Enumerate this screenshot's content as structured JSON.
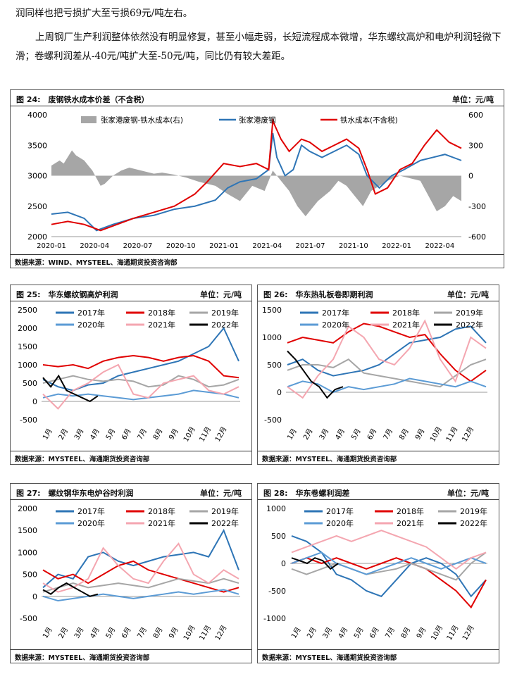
{
  "text": {
    "line1": "润同样也把亏损扩大至亏损69元/吨左右。",
    "para2": "上周钢厂生产利润整体依然没有明显修复，甚至小幅走弱，长短流程成本微增，华东螺纹高炉和电炉利润轻微下滑；卷螺利润差从-40元/吨扩大至-50元/吨，同比仍有较大差距。"
  },
  "chart_data": [
    {
      "id": "fig24",
      "type": "line",
      "title": "图 24:　废钢铁水成本价差（不含税）",
      "unit": "单位：元/吨",
      "source": "数据来源：WIND、MYSTEEL、海通期货投资咨询部",
      "x_ticks": [
        "2020-01",
        "2020-04",
        "2020-07",
        "2020-10",
        "2021-01",
        "2021-04",
        "2021-07",
        "2021-10",
        "2022-01",
        "2022-04"
      ],
      "y_left": {
        "range": [
          2000,
          4000
        ],
        "ticks": [
          2000,
          2500,
          3000,
          3500,
          4000
        ]
      },
      "y_right": {
        "range": [
          -600,
          600
        ],
        "ticks": [
          -600,
          -300,
          0,
          300,
          600
        ]
      },
      "series": [
        {
          "name": "张家港废钢-铁水成本(右)",
          "kind": "area",
          "axis": "right",
          "color": "#a6a6a6",
          "points": [
            [
              0,
              100
            ],
            [
              0.02,
              150
            ],
            [
              0.03,
              120
            ],
            [
              0.05,
              250
            ],
            [
              0.06,
              200
            ],
            [
              0.08,
              150
            ],
            [
              0.1,
              50
            ],
            [
              0.12,
              -100
            ],
            [
              0.13,
              -80
            ],
            [
              0.15,
              0
            ],
            [
              0.17,
              50
            ],
            [
              0.19,
              80
            ],
            [
              0.21,
              60
            ],
            [
              0.23,
              40
            ],
            [
              0.25,
              20
            ],
            [
              0.27,
              30
            ],
            [
              0.3,
              10
            ],
            [
              0.33,
              -20
            ],
            [
              0.36,
              -60
            ],
            [
              0.4,
              -100
            ],
            [
              0.43,
              -180
            ],
            [
              0.46,
              -250
            ],
            [
              0.49,
              -100
            ],
            [
              0.52,
              -150
            ],
            [
              0.54,
              50
            ],
            [
              0.56,
              -50
            ],
            [
              0.58,
              -150
            ],
            [
              0.6,
              -300
            ],
            [
              0.62,
              -400
            ],
            [
              0.65,
              -250
            ],
            [
              0.68,
              -150
            ],
            [
              0.7,
              -50
            ],
            [
              0.72,
              -100
            ],
            [
              0.74,
              -200
            ],
            [
              0.76,
              -300
            ],
            [
              0.78,
              -150
            ],
            [
              0.8,
              -100
            ],
            [
              0.82,
              -50
            ],
            [
              0.85,
              0
            ],
            [
              0.88,
              -30
            ],
            [
              0.9,
              -50
            ],
            [
              0.92,
              -200
            ],
            [
              0.94,
              -350
            ],
            [
              0.96,
              -300
            ],
            [
              0.98,
              -200
            ],
            [
              1.0,
              -250
            ]
          ]
        },
        {
          "name": "张家港废钢",
          "kind": "line",
          "axis": "left",
          "color": "#2e75b6",
          "points": [
            [
              0,
              2370
            ],
            [
              0.04,
              2400
            ],
            [
              0.08,
              2300
            ],
            [
              0.11,
              2100
            ],
            [
              0.15,
              2200
            ],
            [
              0.2,
              2300
            ],
            [
              0.25,
              2350
            ],
            [
              0.3,
              2450
            ],
            [
              0.35,
              2500
            ],
            [
              0.4,
              2600
            ],
            [
              0.43,
              2800
            ],
            [
              0.46,
              2900
            ],
            [
              0.5,
              2950
            ],
            [
              0.53,
              3100
            ],
            [
              0.54,
              3700
            ],
            [
              0.55,
              3300
            ],
            [
              0.57,
              3000
            ],
            [
              0.59,
              3100
            ],
            [
              0.61,
              3500
            ],
            [
              0.63,
              3400
            ],
            [
              0.66,
              3300
            ],
            [
              0.69,
              3400
            ],
            [
              0.72,
              3500
            ],
            [
              0.75,
              3350
            ],
            [
              0.77,
              3000
            ],
            [
              0.8,
              2800
            ],
            [
              0.83,
              3000
            ],
            [
              0.86,
              3100
            ],
            [
              0.9,
              3250
            ],
            [
              0.93,
              3300
            ],
            [
              0.96,
              3350
            ],
            [
              1.0,
              3250
            ]
          ]
        },
        {
          "name": "铁水成本(不含税)",
          "kind": "line",
          "axis": "left",
          "color": "#e00000",
          "points": [
            [
              0,
              2200
            ],
            [
              0.04,
              2250
            ],
            [
              0.08,
              2200
            ],
            [
              0.12,
              2100
            ],
            [
              0.16,
              2200
            ],
            [
              0.2,
              2300
            ],
            [
              0.25,
              2400
            ],
            [
              0.3,
              2500
            ],
            [
              0.35,
              2700
            ],
            [
              0.38,
              2900
            ],
            [
              0.42,
              3200
            ],
            [
              0.46,
              3150
            ],
            [
              0.5,
              3200
            ],
            [
              0.53,
              3100
            ],
            [
              0.54,
              3900
            ],
            [
              0.56,
              3600
            ],
            [
              0.58,
              3400
            ],
            [
              0.61,
              3600
            ],
            [
              0.63,
              3550
            ],
            [
              0.66,
              3400
            ],
            [
              0.69,
              3500
            ],
            [
              0.72,
              3600
            ],
            [
              0.75,
              3450
            ],
            [
              0.77,
              3100
            ],
            [
              0.79,
              2700
            ],
            [
              0.82,
              2800
            ],
            [
              0.85,
              3100
            ],
            [
              0.88,
              3200
            ],
            [
              0.91,
              3500
            ],
            [
              0.94,
              3750
            ],
            [
              0.97,
              3550
            ],
            [
              1.0,
              3450
            ]
          ]
        }
      ]
    },
    {
      "id": "fig25",
      "type": "line",
      "title": "图 25:　华东螺纹钢高炉利润",
      "unit": "单位：元/吨",
      "source": "数据来源：MYSTEEL、海通期货投资咨询部",
      "x_ticks": [
        "1月",
        "2月",
        "3月",
        "4月",
        "5月",
        "6月",
        "7月",
        "8月",
        "9月",
        "10月",
        "11月",
        "12月"
      ],
      "y": {
        "range": [
          -500,
          2500
        ],
        "ticks": [
          -500,
          0,
          500,
          1000,
          1500,
          2000,
          2500
        ]
      },
      "legend": [
        "2017年",
        "2018年",
        "2019年",
        "2020年",
        "2021年",
        "2022年"
      ],
      "series": [
        {
          "name": "2017年",
          "color": "#2e75b6",
          "values": [
            600,
            400,
            300,
            450,
            500,
            700,
            800,
            900,
            1000,
            1100,
            1300,
            1500,
            2000,
            1100
          ]
        },
        {
          "name": "2018年",
          "color": "#e00000",
          "values": [
            1000,
            950,
            1000,
            900,
            1100,
            1200,
            1250,
            1200,
            1100,
            1200,
            1250,
            1100,
            700,
            650
          ]
        },
        {
          "name": "2019年",
          "color": "#a6a6a6",
          "values": [
            500,
            600,
            700,
            600,
            550,
            600,
            550,
            400,
            450,
            700,
            600,
            400,
            450,
            600
          ]
        },
        {
          "name": "2020年",
          "color": "#5b9bd5",
          "values": [
            100,
            200,
            150,
            200,
            150,
            100,
            50,
            100,
            150,
            200,
            300,
            250,
            200,
            100
          ]
        },
        {
          "name": "2021年",
          "color": "#f4a6b0",
          "values": [
            200,
            -200,
            300,
            500,
            800,
            1000,
            200,
            100,
            500,
            600,
            700,
            300,
            200,
            400
          ]
        },
        {
          "name": "2022年",
          "color": "#000000",
          "values": [
            650,
            400,
            700,
            300,
            200,
            100,
            0,
            150
          ]
        }
      ]
    },
    {
      "id": "fig26",
      "type": "line",
      "title": "图 26:　华东热轧板卷即期利润",
      "unit": "单位：元/吨",
      "source": "数据来源：MYSTEEL、海通期货投资咨询部",
      "x_ticks": [
        "1月",
        "2月",
        "3月",
        "4月",
        "5月",
        "6月",
        "7月",
        "8月",
        "9月",
        "10月",
        "11月",
        "12月"
      ],
      "y": {
        "range": [
          -500,
          1500
        ],
        "ticks": [
          -500,
          0,
          500,
          1000,
          1500
        ]
      },
      "legend": [
        "2017年",
        "2018年",
        "2019年",
        "2020年",
        "2021年",
        "2022年"
      ],
      "series": [
        {
          "name": "2017年",
          "color": "#2e75b6",
          "values": [
            500,
            600,
            400,
            300,
            350,
            400,
            500,
            700,
            900,
            950,
            1000,
            1150,
            1200,
            900
          ]
        },
        {
          "name": "2018年",
          "color": "#e00000",
          "values": [
            900,
            1000,
            950,
            900,
            1100,
            1250,
            1200,
            1100,
            1000,
            1050,
            700,
            400,
            200,
            400
          ]
        },
        {
          "name": "2019年",
          "color": "#a6a6a6",
          "values": [
            400,
            500,
            500,
            450,
            600,
            350,
            300,
            250,
            200,
            150,
            100,
            300,
            500,
            600
          ]
        },
        {
          "name": "2020年",
          "color": "#5b9bd5",
          "values": [
            100,
            200,
            150,
            0,
            100,
            50,
            100,
            150,
            250,
            200,
            150,
            100,
            200,
            100
          ]
        },
        {
          "name": "2021年",
          "color": "#f4a6b0",
          "values": [
            100,
            -100,
            300,
            600,
            1200,
            1000,
            600,
            500,
            800,
            1300,
            600,
            200,
            1000,
            800
          ]
        },
        {
          "name": "2022年",
          "color": "#000000",
          "values": [
            750,
            600,
            400,
            200,
            100,
            -100,
            50,
            100
          ]
        }
      ]
    },
    {
      "id": "fig27",
      "type": "line",
      "title": "图 27:　螺纹钢华东电炉谷时利润",
      "unit": "单位：元/吨",
      "source": "数据来源：MYSTEEL、海通期货投资咨询部",
      "x_ticks": [
        "1月",
        "2月",
        "3月",
        "4月",
        "5月",
        "6月",
        "7月",
        "8月",
        "9月",
        "10月",
        "11月",
        "12月"
      ],
      "y": {
        "range": [
          -500,
          2000
        ],
        "ticks": [
          -500,
          0,
          500,
          1000,
          1500,
          2000
        ]
      },
      "legend": [
        "2017年",
        "2018年",
        "2019年",
        "2020年",
        "2021年",
        "2022年"
      ],
      "series": [
        {
          "name": "2017年",
          "color": "#2e75b6",
          "values": [
            200,
            500,
            400,
            900,
            1000,
            800,
            700,
            800,
            900,
            950,
            1000,
            900,
            1500,
            600
          ]
        },
        {
          "name": "2018年",
          "color": "#e00000",
          "values": [
            600,
            400,
            500,
            300,
            500,
            700,
            800,
            600,
            500,
            400,
            300,
            200,
            100,
            200
          ]
        },
        {
          "name": "2019年",
          "color": "#a6a6a6",
          "values": [
            100,
            200,
            300,
            200,
            250,
            300,
            250,
            200,
            300,
            400,
            350,
            300,
            400,
            300
          ]
        },
        {
          "name": "2020年",
          "color": "#5b9bd5",
          "values": [
            0,
            -100,
            -50,
            0,
            50,
            0,
            -50,
            0,
            50,
            100,
            50,
            100,
            150,
            50
          ]
        },
        {
          "name": "2021年",
          "color": "#f4a6b0",
          "values": [
            300,
            100,
            200,
            400,
            1100,
            700,
            400,
            300,
            800,
            1200,
            500,
            300,
            600,
            400
          ]
        },
        {
          "name": "2022年",
          "color": "#000000",
          "values": [
            150,
            50,
            200,
            300,
            200,
            100,
            0,
            50
          ]
        }
      ]
    },
    {
      "id": "fig28",
      "type": "line",
      "title": "图 28:　华东卷螺利润差",
      "unit": "单位：元/吨",
      "source": "数据来源：MYSTEEL、海通期货投资咨询部",
      "x_ticks": [
        "1月",
        "2月",
        "3月",
        "4月",
        "5月",
        "6月",
        "7月",
        "8月",
        "9月",
        "10月",
        "11月",
        "12月"
      ],
      "y": {
        "range": [
          -1000,
          1000
        ],
        "ticks": [
          -1000,
          -500,
          0,
          500,
          1000
        ]
      },
      "legend": [
        "2017年",
        "2018年",
        "2019年",
        "2020年",
        "2021年",
        "2022年"
      ],
      "series": [
        {
          "name": "2017年",
          "color": "#2e75b6",
          "values": [
            500,
            400,
            200,
            -200,
            -300,
            -500,
            -600,
            -300,
            0,
            100,
            0,
            -200,
            -600,
            -300
          ]
        },
        {
          "name": "2018年",
          "color": "#e00000",
          "values": [
            0,
            100,
            0,
            100,
            0,
            -100,
            0,
            100,
            0,
            -100,
            -300,
            -500,
            -800,
            -300
          ]
        },
        {
          "name": "2019年",
          "color": "#a6a6a6",
          "values": [
            -100,
            -200,
            -100,
            0,
            -100,
            -200,
            -150,
            -100,
            0,
            -100,
            -200,
            -300,
            0,
            200
          ]
        },
        {
          "name": "2020年",
          "color": "#5b9bd5",
          "values": [
            0,
            100,
            200,
            0,
            -100,
            -200,
            -100,
            0,
            100,
            0,
            -100,
            0,
            100,
            0
          ]
        },
        {
          "name": "2021年",
          "color": "#f4a6b0",
          "values": [
            200,
            300,
            400,
            500,
            400,
            500,
            600,
            500,
            400,
            300,
            100,
            -100,
            100,
            200
          ]
        },
        {
          "name": "2022年",
          "color": "#000000",
          "values": [
            100,
            50,
            0,
            100,
            50,
            -100,
            0
          ]
        }
      ]
    }
  ]
}
